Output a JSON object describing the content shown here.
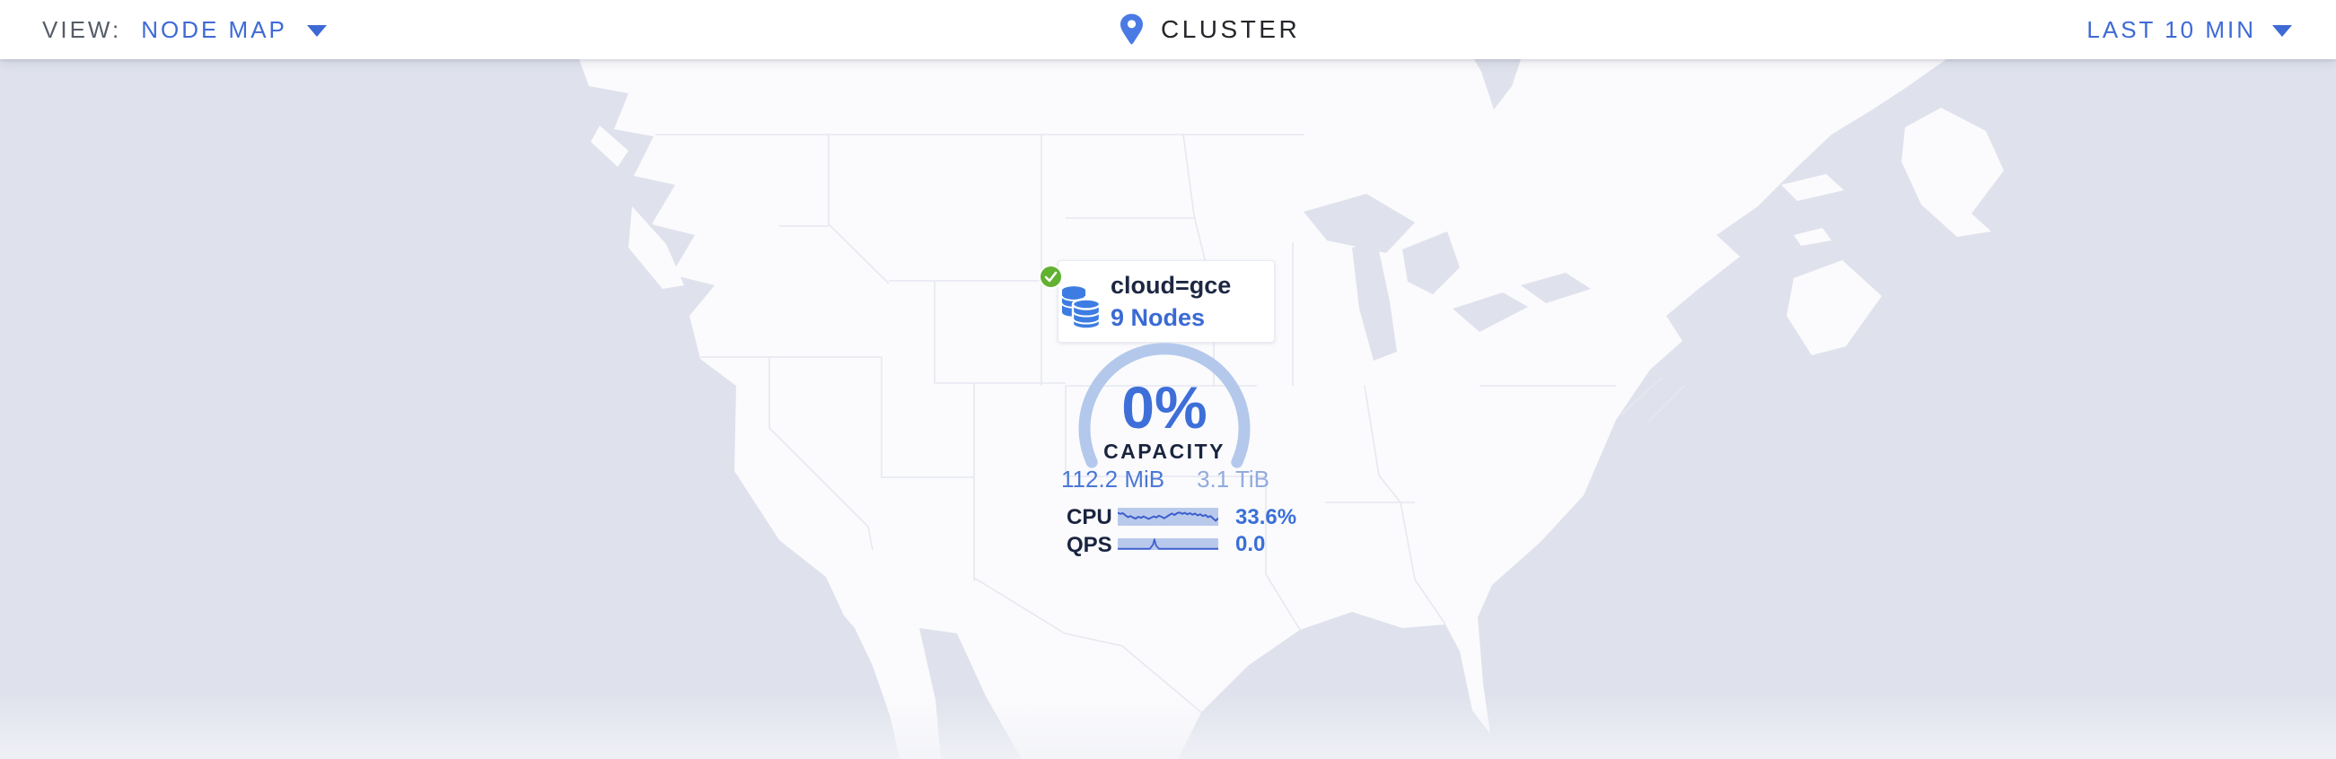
{
  "toolbar": {
    "view_label": "VIEW:",
    "view_value": "NODE MAP",
    "title": "CLUSTER",
    "time_range": "LAST 10 MIN"
  },
  "node_marker": {
    "locality": "cloud=gce",
    "nodes_label": "9 Nodes",
    "status": "healthy"
  },
  "gauge": {
    "percent": "0%",
    "label": "CAPACITY",
    "used": "112.2 MiB",
    "total": "3.1 TiB"
  },
  "metrics": [
    {
      "label": "CPU",
      "value": "33.6%"
    },
    {
      "label": "QPS",
      "value": "0.0"
    }
  ],
  "icons": {
    "view_caret": "chevron-down-icon",
    "time_caret": "chevron-down-icon",
    "cluster_pin": "map-pin-icon",
    "node_status": "check-circle-icon",
    "node_marker": "database-stack-icon"
  },
  "colors": {
    "ocean": "#dfe2ec",
    "land": "#fbfbfd",
    "state_border": "#e6e8f1",
    "accent_blue": "#3e6ad6",
    "content_blue": "#3e6fd9",
    "navy_text": "#19243f",
    "title_text": "#24262a",
    "muted_gray": "#565d68",
    "healthy_green": "#61b132",
    "db_icon_blue": "#3d7ce2",
    "arc_blue": "#b4c8ec",
    "used_blue": "#4a77d6",
    "total_blue": "#92abdf",
    "spark_bg": "#b9c9ec",
    "spark_line": "#3d5fcd"
  },
  "chart_data": [
    {
      "type": "gauge",
      "title": "CAPACITY",
      "value_percent": 0,
      "used": "112.2 MiB",
      "total": "3.1 TiB",
      "arc_sweep_deg": 230,
      "note": "donut gauge open at bottom, 0% filled"
    },
    {
      "type": "line",
      "title": "node sparklines (last 10 min)",
      "x_range_norm": [
        0,
        1
      ],
      "y_note": "normalized, 0 = top of sparkline box",
      "series": [
        {
          "name": "CPU",
          "display_value": "33.6%",
          "points": [
            [
              0,
              0.28
            ],
            [
              0.026,
              0.34
            ],
            [
              0.051,
              0.3
            ],
            [
              0.077,
              0.42
            ],
            [
              0.103,
              0.52
            ],
            [
              0.128,
              0.46
            ],
            [
              0.154,
              0.55
            ],
            [
              0.179,
              0.6
            ],
            [
              0.205,
              0.5
            ],
            [
              0.231,
              0.56
            ],
            [
              0.256,
              0.48
            ],
            [
              0.282,
              0.55
            ],
            [
              0.308,
              0.62
            ],
            [
              0.333,
              0.55
            ],
            [
              0.359,
              0.48
            ],
            [
              0.385,
              0.54
            ],
            [
              0.41,
              0.44
            ],
            [
              0.436,
              0.5
            ],
            [
              0.462,
              0.58
            ],
            [
              0.487,
              0.5
            ],
            [
              0.513,
              0.4
            ],
            [
              0.538,
              0.32
            ],
            [
              0.564,
              0.4
            ],
            [
              0.59,
              0.3
            ],
            [
              0.615,
              0.26
            ],
            [
              0.641,
              0.34
            ],
            [
              0.667,
              0.28
            ],
            [
              0.692,
              0.36
            ],
            [
              0.718,
              0.3
            ],
            [
              0.744,
              0.38
            ],
            [
              0.769,
              0.32
            ],
            [
              0.795,
              0.42
            ],
            [
              0.821,
              0.36
            ],
            [
              0.846,
              0.46
            ],
            [
              0.872,
              0.4
            ],
            [
              0.897,
              0.52
            ],
            [
              0.923,
              0.46
            ],
            [
              0.949,
              0.6
            ],
            [
              0.974,
              0.72
            ],
            [
              1,
              0.58
            ]
          ]
        },
        {
          "name": "QPS",
          "display_value": "0.0",
          "points": [
            [
              0,
              0.9
            ],
            [
              0.32,
              0.9
            ],
            [
              0.35,
              0.55
            ],
            [
              0.365,
              0.1
            ],
            [
              0.38,
              0.6
            ],
            [
              0.41,
              0.9
            ],
            [
              1,
              0.9
            ]
          ]
        }
      ]
    }
  ]
}
